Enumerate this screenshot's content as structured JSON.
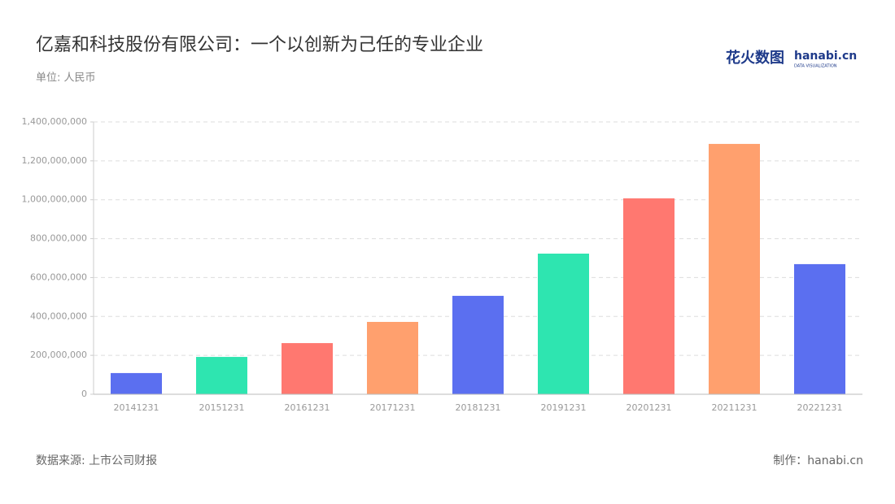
{
  "chart_data": {
    "type": "bar",
    "title": "亿嘉和科技股份有限公司：一个以创新为己任的专业企业",
    "subtitle": "单位: 人民币",
    "source": "数据来源: 上市公司财报",
    "credit": "制作：hanabi.cn",
    "logo": "花火数图",
    "logo_sub": "hanabi.cn",
    "logo_tagline": "DATA VISUALIZATION",
    "categories": [
      "20141231",
      "20151231",
      "20161231",
      "20171231",
      "20181231",
      "20191231",
      "20201231",
      "20211231",
      "20221231"
    ],
    "values": [
      109000000,
      192000000,
      263000000,
      372000000,
      506000000,
      723000000,
      1007000000,
      1287000000,
      669000000
    ],
    "colors": [
      "#5b6ff0",
      "#2ee5b0",
      "#ff7870",
      "#ffa06e",
      "#5b6ff0",
      "#2ee5b0",
      "#ff7870",
      "#ffa06e",
      "#5b6ff0"
    ],
    "ylim": [
      0,
      1400000000
    ],
    "yticks": [
      0,
      {
        "value": 200000000,
        "label": "200,000,000"
      },
      {
        "value": 400000000,
        "label": "400,000,000"
      },
      {
        "value": 600000000,
        "label": "600,000,000"
      },
      {
        "value": 800000000,
        "label": "800,000,000"
      },
      {
        "value": 1000000000,
        "label": "1,000,000,000"
      },
      {
        "value": 1200000000,
        "label": "1,200,000,000"
      },
      {
        "value": 1400000000,
        "label": "1,400,000,000"
      }
    ],
    "grid": true
  }
}
